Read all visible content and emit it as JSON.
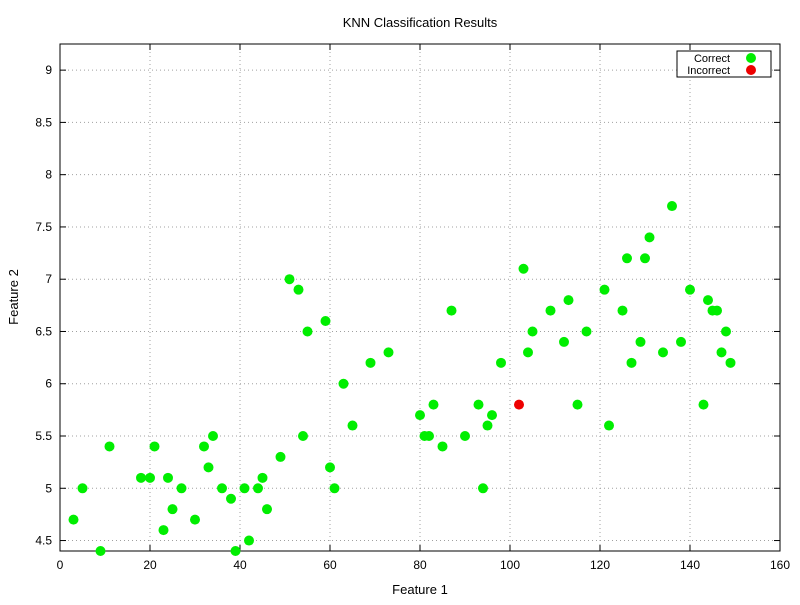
{
  "chart_data": {
    "type": "scatter",
    "title": "KNN Classification Results",
    "xlabel": "Feature 1",
    "ylabel": "Feature 2",
    "xlim": [
      0,
      160
    ],
    "ylim": [
      4.4,
      9.25
    ],
    "x_ticks": [
      0,
      20,
      40,
      60,
      80,
      100,
      120,
      140,
      160
    ],
    "y_ticks": [
      4.5,
      5,
      5.5,
      6,
      6.5,
      7,
      7.5,
      8,
      8.5,
      9
    ],
    "x_tick_labels": [
      "0",
      "20",
      "40",
      "60",
      "80",
      "100",
      "120",
      "140",
      "160"
    ],
    "y_tick_labels": [
      "4.5",
      "5",
      "5.5",
      "6",
      "6.5",
      "7",
      "7.5",
      "8",
      "8.5",
      "9"
    ],
    "grid": true,
    "legend_position": "top-right",
    "series": [
      {
        "name": "Correct",
        "color": "#00ee00",
        "points": [
          [
            3,
            4.7
          ],
          [
            5,
            5.0
          ],
          [
            9,
            4.4
          ],
          [
            11,
            5.4
          ],
          [
            18,
            5.1
          ],
          [
            20,
            5.1
          ],
          [
            21,
            5.4
          ],
          [
            23,
            4.6
          ],
          [
            24,
            5.1
          ],
          [
            25,
            4.8
          ],
          [
            27,
            5.0
          ],
          [
            30,
            4.7
          ],
          [
            32,
            5.4
          ],
          [
            33,
            5.2
          ],
          [
            34,
            5.5
          ],
          [
            36,
            5.0
          ],
          [
            38,
            4.9
          ],
          [
            39,
            4.4
          ],
          [
            41,
            5.0
          ],
          [
            42,
            4.5
          ],
          [
            44,
            5.0
          ],
          [
            45,
            5.1
          ],
          [
            46,
            4.8
          ],
          [
            49,
            5.3
          ],
          [
            51,
            7.0
          ],
          [
            53,
            6.9
          ],
          [
            54,
            5.5
          ],
          [
            55,
            6.5
          ],
          [
            59,
            6.6
          ],
          [
            60,
            5.2
          ],
          [
            61,
            5.0
          ],
          [
            63,
            6.0
          ],
          [
            65,
            5.6
          ],
          [
            69,
            6.2
          ],
          [
            73,
            6.3
          ],
          [
            80,
            5.7
          ],
          [
            81,
            5.5
          ],
          [
            82,
            5.5
          ],
          [
            83,
            5.8
          ],
          [
            85,
            5.4
          ],
          [
            87,
            6.7
          ],
          [
            90,
            5.5
          ],
          [
            93,
            5.8
          ],
          [
            94,
            5.0
          ],
          [
            95,
            5.6
          ],
          [
            96,
            5.7
          ],
          [
            98,
            6.2
          ],
          [
            103,
            7.1
          ],
          [
            104,
            6.3
          ],
          [
            105,
            6.5
          ],
          [
            109,
            6.7
          ],
          [
            112,
            6.4
          ],
          [
            113,
            6.8
          ],
          [
            115,
            5.8
          ],
          [
            117,
            6.5
          ],
          [
            121,
            6.9
          ],
          [
            122,
            5.6
          ],
          [
            125,
            6.7
          ],
          [
            126,
            7.2
          ],
          [
            127,
            6.2
          ],
          [
            129,
            6.4
          ],
          [
            130,
            7.2
          ],
          [
            131,
            7.4
          ],
          [
            134,
            6.3
          ],
          [
            136,
            7.7
          ],
          [
            138,
            6.4
          ],
          [
            140,
            6.9
          ],
          [
            143,
            5.8
          ],
          [
            144,
            6.8
          ],
          [
            145,
            6.7
          ],
          [
            146,
            6.7
          ],
          [
            147,
            6.3
          ],
          [
            148,
            6.5
          ],
          [
            149,
            6.2
          ]
        ]
      },
      {
        "name": "Incorrect",
        "color": "#ee0000",
        "points": [
          [
            102,
            5.8
          ]
        ]
      }
    ]
  }
}
